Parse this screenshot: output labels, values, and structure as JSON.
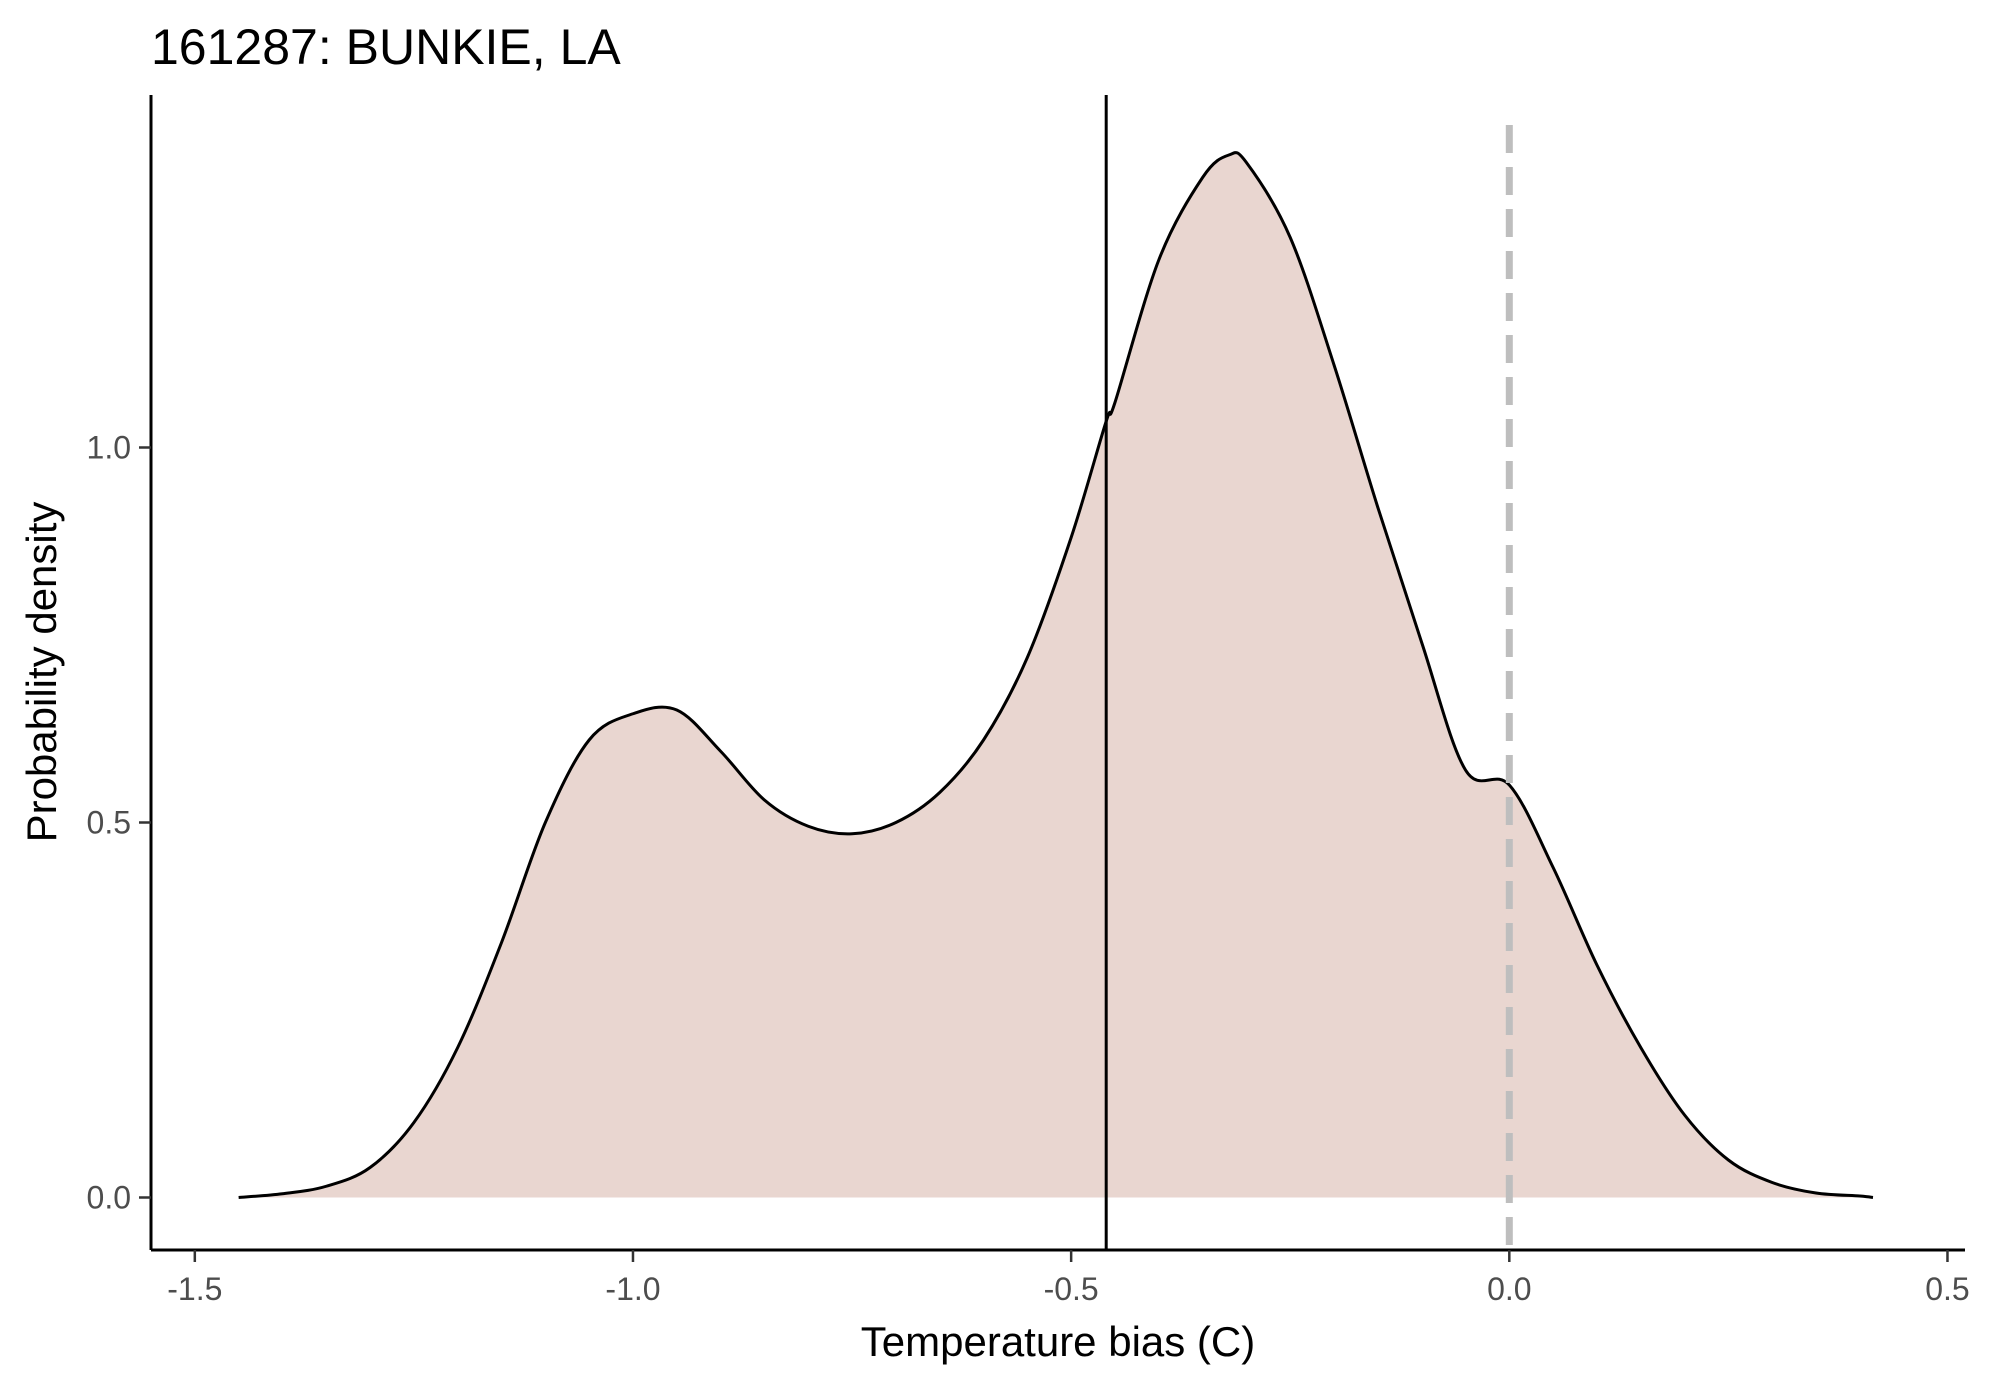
{
  "chart_data": {
    "type": "area",
    "title": "161287: BUNKIE, LA",
    "xlabel": "Temperature bias (C)",
    "ylabel": "Probability density",
    "xlim": [
      -1.55,
      0.52
    ],
    "ylim": [
      -0.07,
      1.47
    ],
    "x_ticks": [
      -1.5,
      -1.0,
      -0.5,
      0.0,
      0.5
    ],
    "x_tick_labels": [
      "-1.5",
      "-1.0",
      "-0.5",
      "0.0",
      "0.5"
    ],
    "y_ticks": [
      0.0,
      0.5,
      1.0
    ],
    "y_tick_labels": [
      "0.0",
      "0.5",
      "1.0"
    ],
    "grid": false,
    "legend": "none",
    "fill_color": "#e9d6d0",
    "line_color": "#000000",
    "series": [
      {
        "x": [
          -1.45,
          -1.4,
          -1.35,
          -1.3,
          -1.25,
          -1.2,
          -1.15,
          -1.1,
          -1.05,
          -1.0,
          -0.95,
          -0.9,
          -0.85,
          -0.8,
          -0.75,
          -0.7,
          -0.65,
          -0.6,
          -0.55,
          -0.5,
          -0.46,
          -0.45,
          -0.4,
          -0.35,
          -0.32,
          -0.3,
          -0.25,
          -0.2,
          -0.15,
          -0.1,
          -0.05,
          0.0,
          0.05,
          0.1,
          0.15,
          0.2,
          0.25,
          0.3,
          0.35,
          0.4,
          0.415
        ],
        "y": [
          0.0,
          0.005,
          0.015,
          0.04,
          0.1,
          0.2,
          0.34,
          0.5,
          0.61,
          0.645,
          0.65,
          0.595,
          0.53,
          0.495,
          0.485,
          0.5,
          0.54,
          0.61,
          0.72,
          0.88,
          1.035,
          1.06,
          1.25,
          1.36,
          1.39,
          1.38,
          1.28,
          1.11,
          0.92,
          0.74,
          0.57,
          0.55,
          0.44,
          0.31,
          0.2,
          0.11,
          0.05,
          0.02,
          0.006,
          0.002,
          0.0
        ]
      }
    ],
    "vlines": [
      {
        "x": -0.46,
        "style": "solid",
        "color": "#000000"
      },
      {
        "x": 0.0,
        "style": "dashed",
        "color": "#bebebe"
      }
    ]
  }
}
